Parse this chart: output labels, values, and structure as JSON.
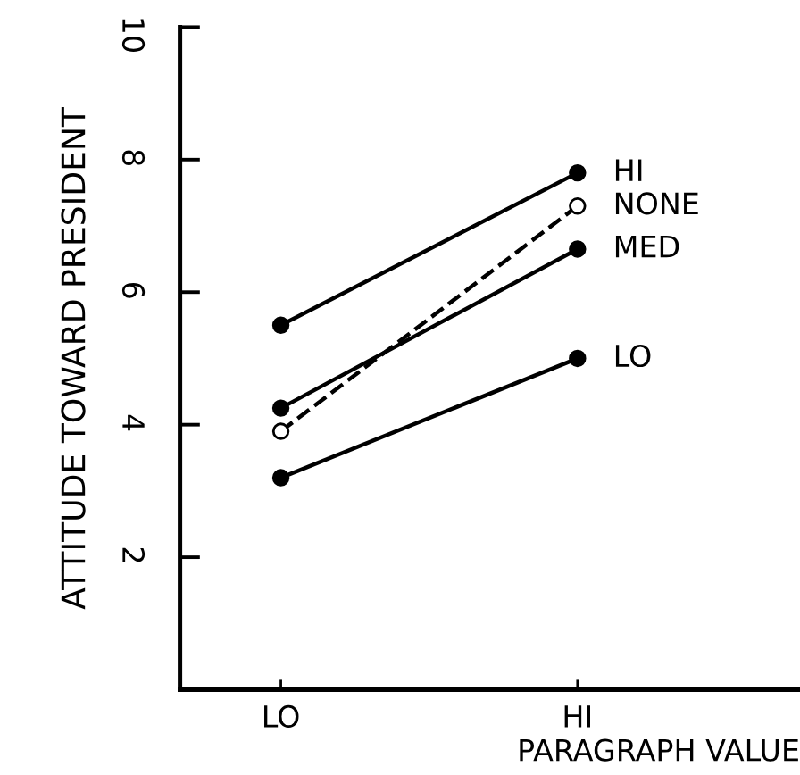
{
  "chart_data": {
    "type": "line",
    "xlabel": "PARAGRAPH VALUE",
    "ylabel": "ATTITUDE TOWARD PRESIDENT",
    "categories": [
      "LO",
      "HI"
    ],
    "series": [
      {
        "name": "HI",
        "color": "#000000",
        "values": [
          5.5,
          7.8
        ],
        "marker": "circle",
        "line_style": "solid"
      },
      {
        "name": "NONE",
        "color": "#000000",
        "values": [
          3.9,
          7.3
        ],
        "marker": "open circle",
        "line_style": "dashed"
      },
      {
        "name": "MED",
        "color": "#000000",
        "values": [
          4.25,
          6.65
        ],
        "marker": "circle",
        "line_style": "solid"
      },
      {
        "name": "LO",
        "color": "#000000",
        "values": [
          3.2,
          5.0
        ],
        "marker": "circle",
        "line_style": "solid"
      }
    ],
    "ylim": [
      0,
      10
    ],
    "yticks": [
      2,
      4,
      6,
      8,
      10
    ],
    "grid": false,
    "legend": false
  }
}
